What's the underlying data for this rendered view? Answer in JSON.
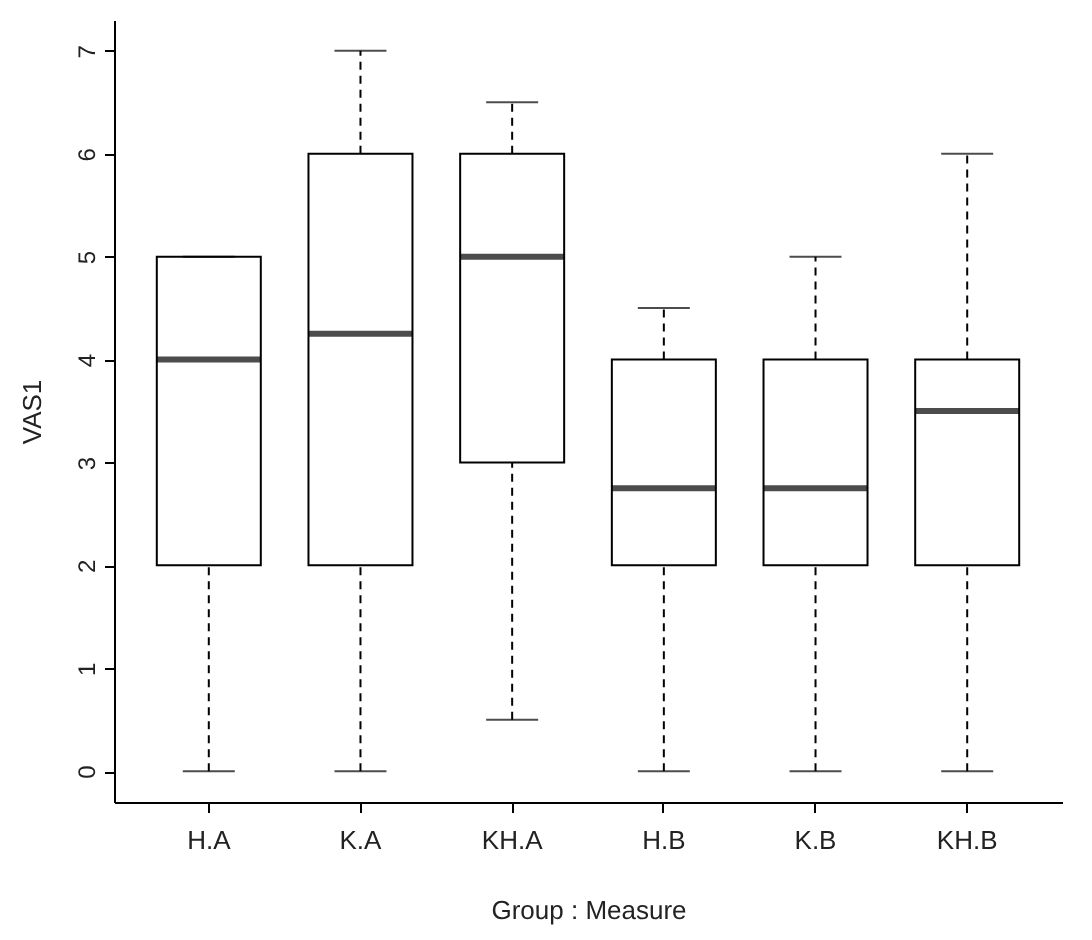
{
  "chart_data": {
    "type": "box",
    "xlabel": "Group : Measure",
    "ylabel": "VAS1",
    "categories": [
      "H.A",
      "K.A",
      "KH.A",
      "H.B",
      "K.B",
      "KH.B"
    ],
    "boxes": [
      {
        "low": 0,
        "q1": 2,
        "median": 4,
        "q3": 5,
        "high": 5
      },
      {
        "low": 0,
        "q1": 2,
        "median": 4.25,
        "q3": 6,
        "high": 7
      },
      {
        "low": 0.5,
        "q1": 3,
        "median": 5,
        "q3": 6,
        "high": 6.5
      },
      {
        "low": 0,
        "q1": 2,
        "median": 2.75,
        "q3": 4,
        "high": 4.5
      },
      {
        "low": 0,
        "q1": 2,
        "median": 2.75,
        "q3": 4,
        "high": 5
      },
      {
        "low": 0,
        "q1": 2,
        "median": 3.5,
        "q3": 4,
        "high": 6
      }
    ],
    "ylim": [
      -0.3,
      7.3
    ],
    "yticks": [
      0,
      1,
      2,
      3,
      4,
      5,
      6,
      7
    ],
    "grid": false
  }
}
